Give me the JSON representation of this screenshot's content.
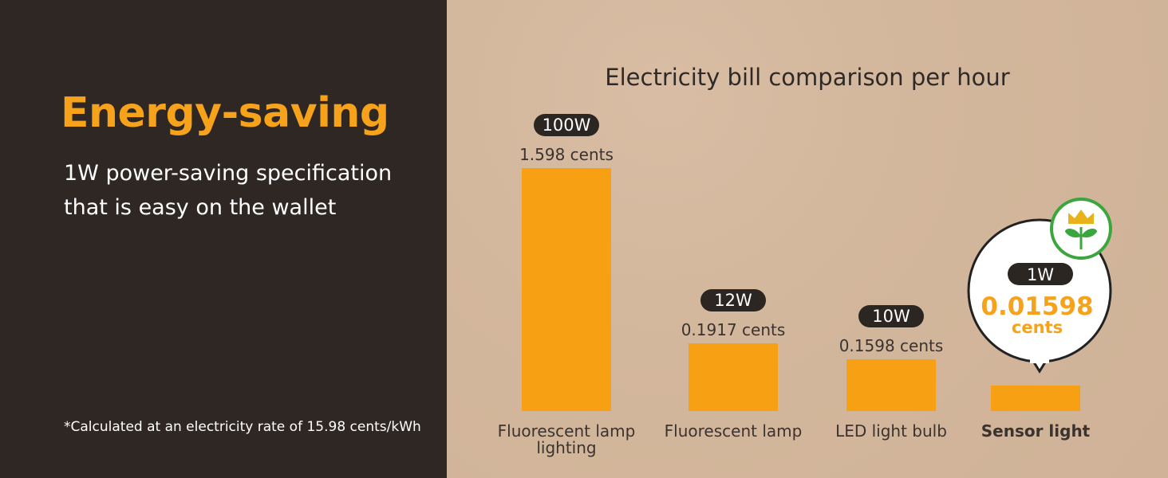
{
  "left": {
    "headline": "Energy-saving",
    "subtitle_line1": "1W power-saving specification",
    "subtitle_line2": "that is easy on the wallet",
    "footnote": "*Calculated at an electricity rate of 15.98 cents/kWh"
  },
  "colors": {
    "dark_panel": "#2e2724",
    "accent_orange": "#f7a21b",
    "bar_orange": "#f8a013",
    "pill_dark": "#2c2623",
    "badge_green": "#3aa63d",
    "crown_gold": "#e7b21a"
  },
  "chart_data": {
    "type": "bar",
    "title": "Electricity bill comparison per hour",
    "categories": [
      "Fluorescent lamp lighting",
      "Fluorescent lamp",
      "LED light bulb",
      "Sensor light"
    ],
    "category_lines": [
      [
        "Fluorescent lamp",
        "lighting"
      ],
      [
        "Fluorescent lamp"
      ],
      [
        "LED light bulb"
      ],
      [
        "Sensor light"
      ]
    ],
    "wattage": [
      "100W",
      "12W",
      "10W",
      "1W"
    ],
    "value_labels": [
      "1.598 cents",
      "0.1917 cents",
      "0.1598 cents",
      "0.01598"
    ],
    "highlight_unit": "cents",
    "values": [
      1.598,
      0.1917,
      0.1598,
      0.01598
    ],
    "highlight_index": 3,
    "highlight_icon": "crown-leaf-icon"
  }
}
